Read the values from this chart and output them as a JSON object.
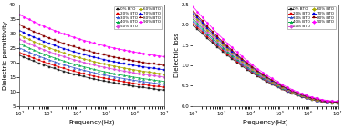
{
  "left_chart": {
    "xlabel": "Frequency(Hz)",
    "ylabel": "Dielectric permittivity",
    "xlim": [
      100,
      10000000.0
    ],
    "ylim": [
      5,
      40
    ],
    "yticks": [
      5,
      10,
      15,
      20,
      25,
      30,
      35,
      40
    ],
    "series": [
      {
        "label": "0% BTO",
        "color": "#222222",
        "marker": "s",
        "start_y": 22.5,
        "mid_y": 19.0,
        "end_y": 10.5
      },
      {
        "label": "20% BTO",
        "color": "#dd0000",
        "marker": "s",
        "start_y": 23.5,
        "mid_y": 20.0,
        "end_y": 11.5
      },
      {
        "label": "30% BTO",
        "color": "#3355cc",
        "marker": "^",
        "start_y": 25.0,
        "mid_y": 21.0,
        "end_y": 12.5
      },
      {
        "label": "40% BTO",
        "color": "#00aa44",
        "marker": "^",
        "start_y": 26.5,
        "mid_y": 22.0,
        "end_y": 13.5
      },
      {
        "label": "50% BTO",
        "color": "#dd44dd",
        "marker": "D",
        "start_y": 28.0,
        "mid_y": 23.5,
        "end_y": 15.0
      },
      {
        "label": "60% BTO",
        "color": "#aaaa00",
        "marker": "D",
        "start_y": 29.5,
        "mid_y": 24.5,
        "end_y": 16.0
      },
      {
        "label": "70% BTO",
        "color": "#0000dd",
        "marker": "s",
        "start_y": 31.0,
        "mid_y": 26.0,
        "end_y": 17.5
      },
      {
        "label": "80% BTO",
        "color": "#880000",
        "marker": "s",
        "start_y": 33.0,
        "mid_y": 27.5,
        "end_y": 19.0
      },
      {
        "label": "90% BTO",
        "color": "#ff00ff",
        "marker": "D",
        "start_y": 36.5,
        "mid_y": 30.5,
        "end_y": 22.0
      }
    ]
  },
  "right_chart": {
    "xlabel": "Frequency(Hz)",
    "ylabel": "Dielectric loss",
    "xlim": [
      100,
      10000000.0
    ],
    "ylim": [
      0,
      2.5
    ],
    "yticks": [
      0.0,
      0.5,
      1.0,
      1.5,
      2.0,
      2.5
    ],
    "series": [
      {
        "label": "0% BTO",
        "color": "#222222",
        "marker": "s",
        "start_y": 2.0,
        "end_y": 0.07
      },
      {
        "label": "20% BTO",
        "color": "#dd0000",
        "marker": "s",
        "start_y": 2.05,
        "end_y": 0.08
      },
      {
        "label": "30% BTO",
        "color": "#3355cc",
        "marker": "^",
        "start_y": 2.1,
        "end_y": 0.08
      },
      {
        "label": "40% BTO",
        "color": "#00aa44",
        "marker": "^",
        "start_y": 2.15,
        "end_y": 0.09
      },
      {
        "label": "50% BTO",
        "color": "#dd44dd",
        "marker": "D",
        "start_y": 2.2,
        "end_y": 0.09
      },
      {
        "label": "60% BTO",
        "color": "#aaaa00",
        "marker": "D",
        "start_y": 2.25,
        "end_y": 0.09
      },
      {
        "label": "70% BTO",
        "color": "#0000dd",
        "marker": "s",
        "start_y": 2.3,
        "end_y": 0.1
      },
      {
        "label": "80% BTO",
        "color": "#880000",
        "marker": "s",
        "start_y": 2.35,
        "end_y": 0.1
      },
      {
        "label": "90% BTO",
        "color": "#ff00ff",
        "marker": "D",
        "start_y": 2.45,
        "end_y": 0.12
      }
    ]
  }
}
